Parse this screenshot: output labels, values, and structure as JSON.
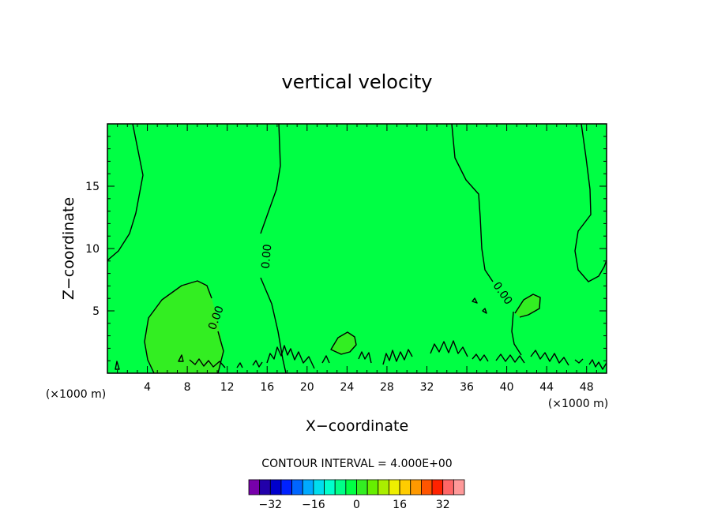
{
  "chart_data": {
    "type": "heatmap",
    "title": "vertical velocity",
    "xlabel": "X−coordinate",
    "ylabel": "Z−coordinate",
    "x_unit_left": "(×1000 m)",
    "x_unit_right": "(×1000 m)",
    "xlim": [
      0,
      50
    ],
    "ylim": [
      0,
      20
    ],
    "x_ticks": [
      4,
      8,
      12,
      16,
      20,
      24,
      28,
      32,
      36,
      40,
      44,
      48
    ],
    "y_ticks": [
      5,
      10,
      15
    ],
    "contour_interval_text": "CONTOUR INTERVAL = 4.000E+00",
    "contour_label": "0.00",
    "field_color": "#00ff44",
    "positive_region_color": "#33ee22",
    "colorbar": {
      "colors": [
        "#7700aa",
        "#2200aa",
        "#0000cc",
        "#0022ff",
        "#0066ff",
        "#00aaff",
        "#00ddee",
        "#00ffcc",
        "#00ff88",
        "#00ff44",
        "#33ee22",
        "#66ee00",
        "#aaee00",
        "#eeee00",
        "#ffcc00",
        "#ff9900",
        "#ff5500",
        "#ff2200",
        "#ff6666",
        "#ff9999"
      ],
      "tick_labels": [
        "−32",
        "−16",
        "0",
        "16",
        "32"
      ],
      "tick_values": [
        -32,
        -16,
        0,
        16,
        32
      ],
      "range": [
        -40,
        40
      ]
    }
  }
}
